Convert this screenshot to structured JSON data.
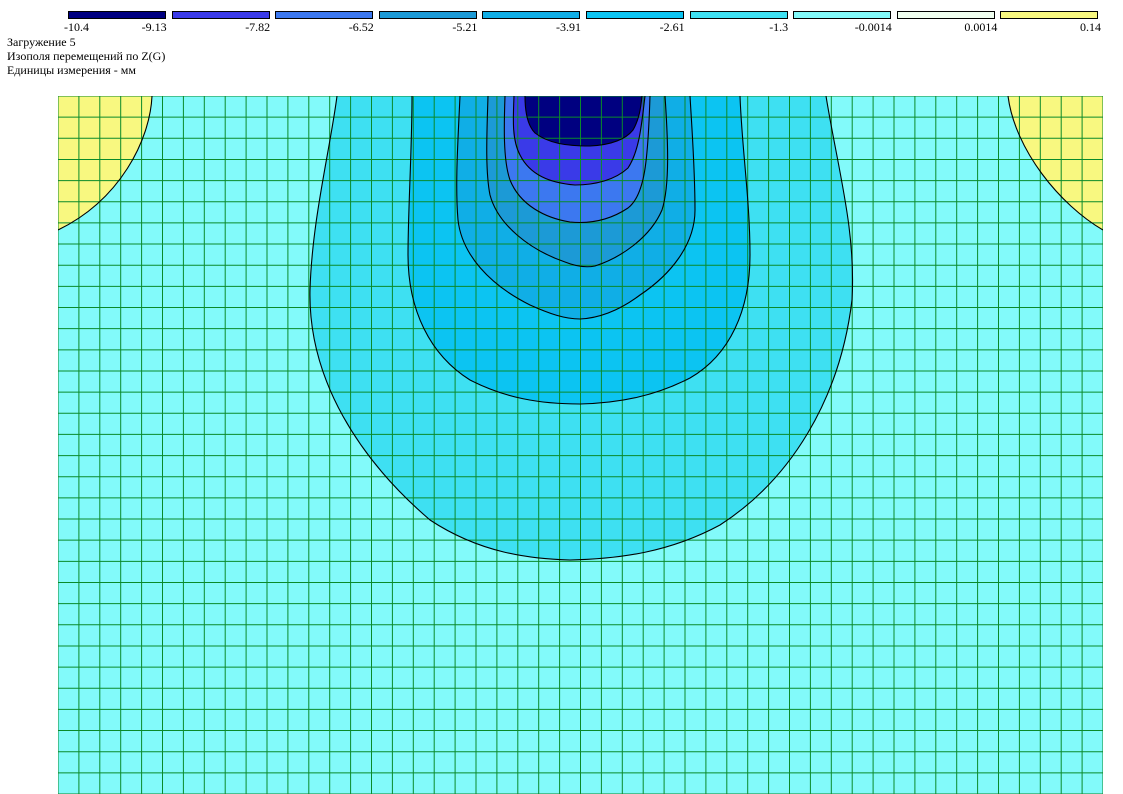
{
  "legend": {
    "colors": [
      "#000080",
      "#3a3ae8",
      "#3c78f0",
      "#1c9ad6",
      "#10aee6",
      "#0cc4f2",
      "#3ee0f2",
      "#82fafa",
      "#f0fff0",
      "#f8f880"
    ],
    "ticks": [
      "-10.4",
      "-9.13",
      "-7.82",
      "-6.52",
      "-5.21",
      "-3.91",
      "-2.61",
      "-1.3",
      "-0.0014",
      "0.0014",
      "0.14"
    ]
  },
  "info": {
    "line1": "Загружение 5",
    "line2": "Изополя  перемещений по Z(G)",
    "line3": "Единицы измерения - мм"
  },
  "plot": {
    "mesh_columns": 50,
    "mesh_rows": 33,
    "grid_color": "#0a8a2a",
    "isoline_color": "#000000"
  }
}
